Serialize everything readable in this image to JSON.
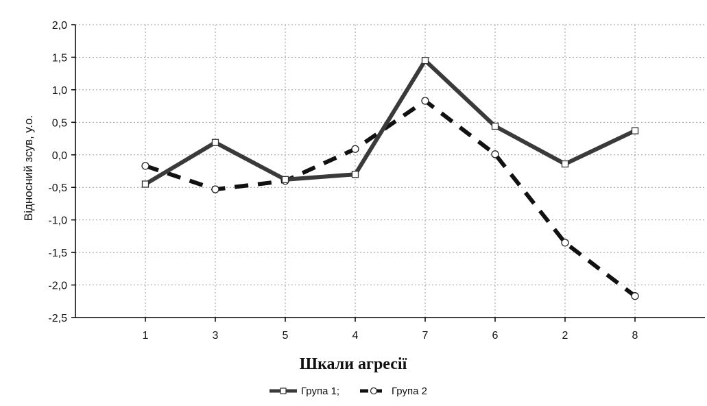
{
  "chart_data": {
    "type": "line",
    "xlabel": "Шкали агресії",
    "ylabel": "Відносний зсув, у.о.",
    "categories": [
      "1",
      "3",
      "5",
      "4",
      "7",
      "6",
      "2",
      "8"
    ],
    "ylim": [
      -2.5,
      2.0
    ],
    "yticks": [
      2.0,
      1.5,
      1.0,
      0.5,
      0.0,
      -0.5,
      -1.0,
      -1.5,
      -2.0,
      -2.5
    ],
    "ytick_labels": [
      "2,0",
      "1,5",
      "1,0",
      "0,5",
      "0,0",
      "-0,5",
      "-1,0",
      "-1,5",
      "-2,0",
      "-2,5"
    ],
    "grid": true,
    "legend_position": "bottom",
    "series": [
      {
        "name": "Група 1;",
        "values": [
          -0.45,
          0.19,
          -0.38,
          -0.3,
          1.45,
          0.44,
          -0.14,
          0.37
        ],
        "color": "#3a3a3a",
        "line_style": "solid",
        "marker": "square"
      },
      {
        "name": "Група 2",
        "values": [
          -0.17,
          -0.53,
          -0.4,
          0.09,
          0.83,
          0.01,
          -1.35,
          -2.17
        ],
        "color": "#111111",
        "line_style": "dashed",
        "marker": "circle"
      }
    ]
  }
}
